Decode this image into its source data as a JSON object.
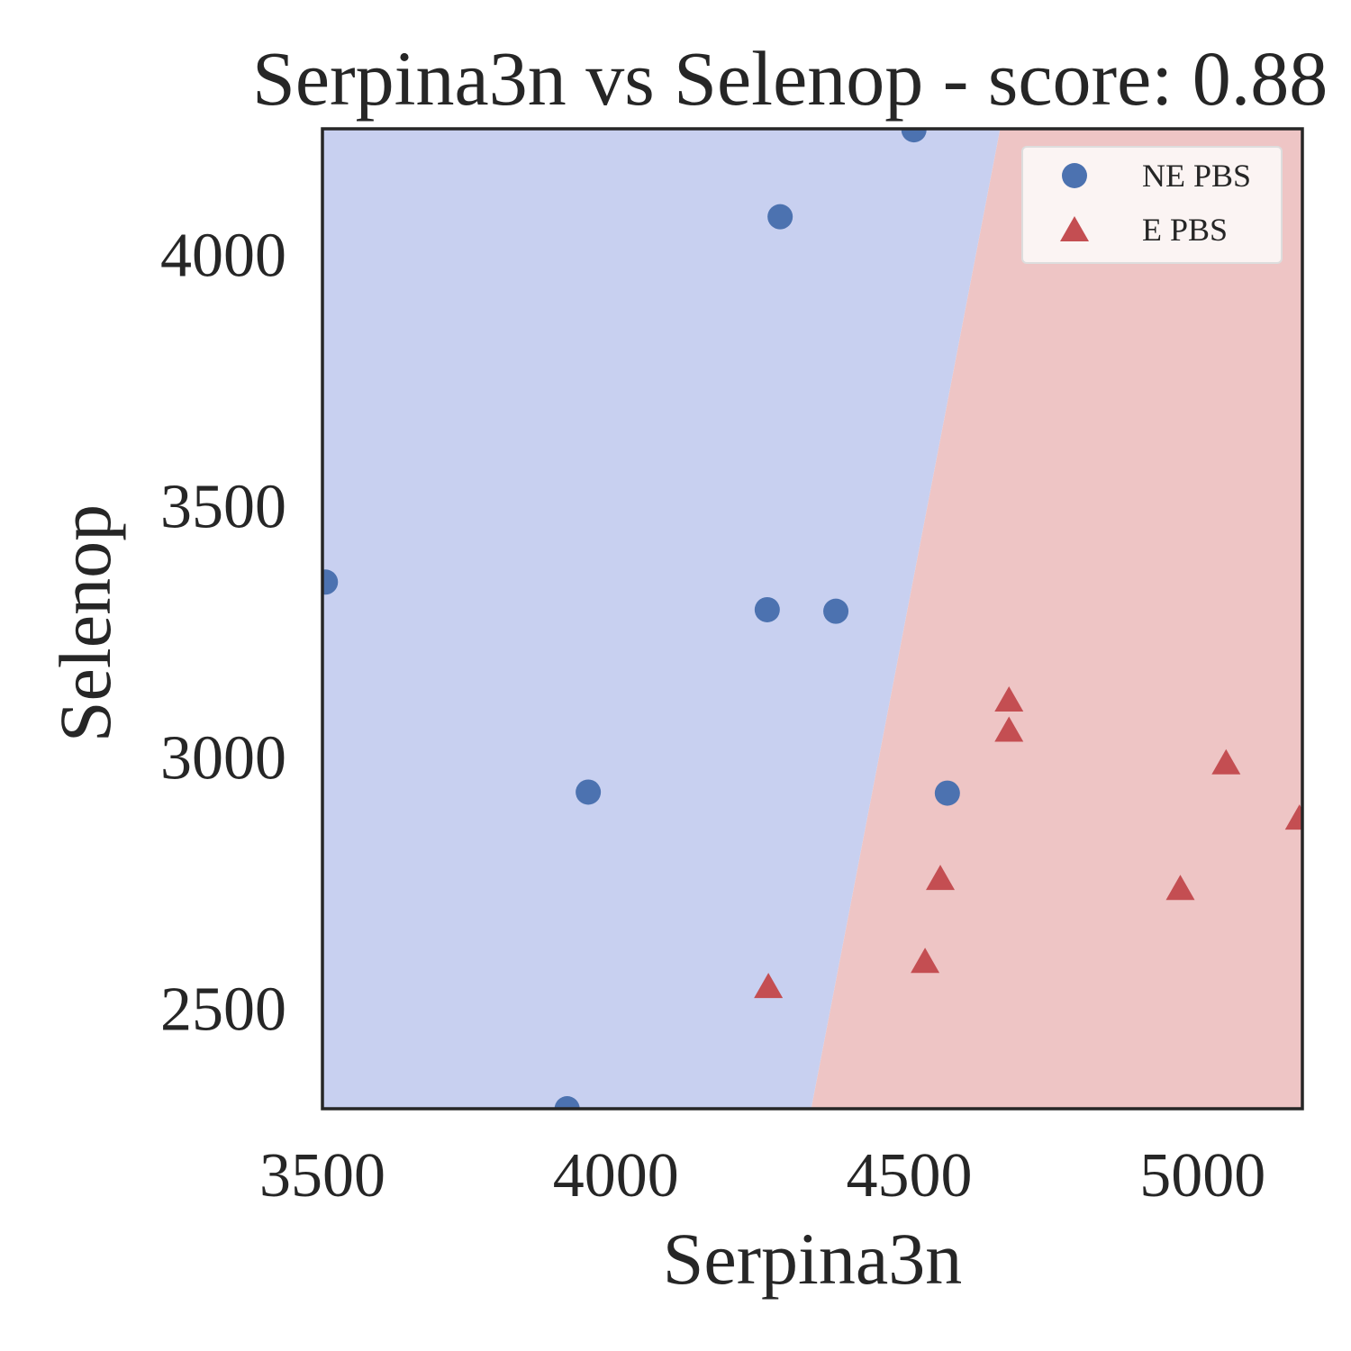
{
  "chart_data": {
    "type": "scatter",
    "title": "Serpina3n vs Selenop - score: 0.88",
    "xlabel": "Serpina3n",
    "ylabel": "Selenop",
    "xlim": [
      3500,
      5170
    ],
    "ylim": [
      2300,
      4250
    ],
    "xticks": [
      "3500",
      "4000",
      "4500",
      "5000"
    ],
    "yticks": [
      "2500",
      "3000",
      "3500",
      "4000"
    ],
    "grid": false,
    "legend_position": "top-right",
    "decision_boundary": {
      "points": [
        [
          4333,
          2300
        ],
        [
          4655,
          4250
        ]
      ],
      "left_region_color": "#c8d0f0",
      "right_region_color": "#eec5c5"
    },
    "series": [
      {
        "name": "NE PBS",
        "marker": "circle",
        "color": "#4c72b0",
        "points": [
          [
            4508,
            4248
          ],
          [
            4280,
            4075
          ],
          [
            3505,
            3348
          ],
          [
            4258,
            3293
          ],
          [
            4375,
            3290
          ],
          [
            3953,
            2930
          ],
          [
            4565,
            2928
          ],
          [
            3917,
            2300
          ]
        ]
      },
      {
        "name": "E PBS",
        "marker": "triangle",
        "color": "#c44e52",
        "points": [
          [
            4670,
            3110
          ],
          [
            4670,
            3050
          ],
          [
            5040,
            2985
          ],
          [
            5165,
            2875
          ],
          [
            4553,
            2755
          ],
          [
            4962,
            2735
          ],
          [
            4527,
            2590
          ],
          [
            4260,
            2540
          ]
        ]
      }
    ]
  }
}
